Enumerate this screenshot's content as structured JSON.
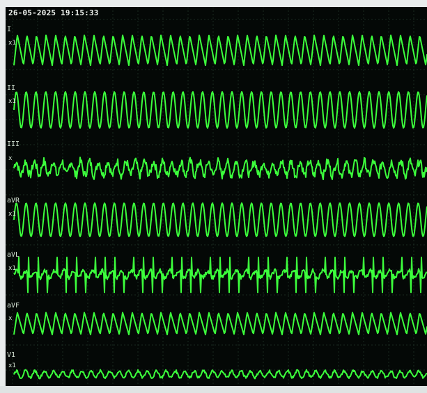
{
  "monitor": {
    "timestamp": "26-05-2025 19:15:33",
    "trace_color": "#3cff3c",
    "grid_color": "#1a2a20",
    "background_color": "#040806",
    "leads": [
      {
        "name": "I",
        "gain_label": "x1",
        "pattern": "sawtooth",
        "freq": 44,
        "amplitude": 0.55
      },
      {
        "name": "II",
        "gain_label": "x1",
        "pattern": "sine",
        "freq": 43,
        "amplitude": 0.65
      },
      {
        "name": "III",
        "gain_label": "x",
        "pattern": "noisy",
        "freq": 46,
        "amplitude": 0.35
      },
      {
        "name": "aVR",
        "gain_label": "x1",
        "pattern": "sine",
        "freq": 43,
        "amplitude": 0.6
      },
      {
        "name": "aVL",
        "gain_label": "x1",
        "pattern": "spiky",
        "freq": 44,
        "amplitude": 0.3
      },
      {
        "name": "aVF",
        "gain_label": "x",
        "pattern": "sawtooth",
        "freq": 44,
        "amplitude": 0.4
      },
      {
        "name": "V1",
        "gain_label": "x1",
        "pattern": "small",
        "freq": 45,
        "amplitude": 0.15
      }
    ]
  }
}
